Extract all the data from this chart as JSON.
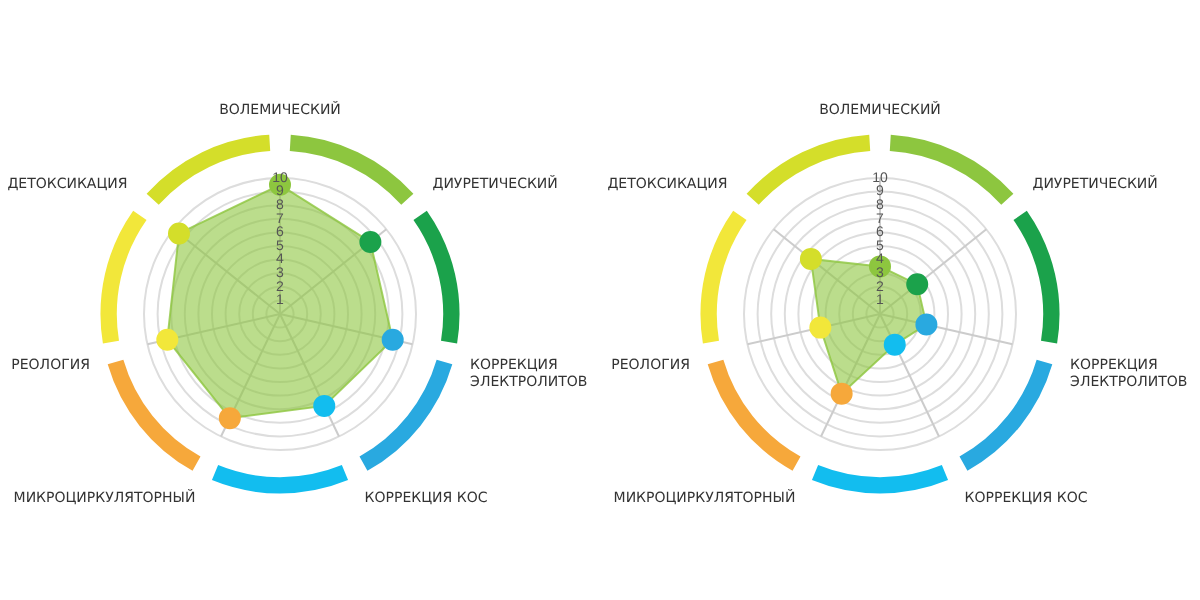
{
  "chart_data": [
    {
      "type": "radar",
      "categories": [
        "ВОЛЕМИЧЕСКИЙ",
        "ДИУРЕТИЧЕСКИЙ",
        "КОРРЕКЦИЯ ЭЛЕКТРОЛИТОВ",
        "КОРРЕКЦИЯ КОС",
        "МИКРОЦИРКУЛЯТОРНЫЙ",
        "РЕОЛОГИЯ",
        "ДЕТОКСИКАЦИЯ"
      ],
      "ylim": [
        0,
        10
      ],
      "yticks": [
        1,
        2,
        3,
        4,
        5,
        6,
        7,
        8,
        9,
        10
      ],
      "grid": true,
      "legend": false,
      "marker": "circle",
      "series": [
        {
          "color": "#8dc63f",
          "colors": [
            "#8dc63f",
            "#1ba24b",
            "#29a9e0",
            "#12bdef",
            "#f6a83b",
            "#f2e73a",
            "#d4de2a"
          ],
          "values": [
            9.5,
            8.5,
            8.5,
            7.5,
            8.5,
            8.5,
            9.5
          ]
        }
      ]
    },
    {
      "type": "radar",
      "categories": [
        "ВОЛЕМИЧЕСКИЙ",
        "ДИУРЕТИЧЕСКИЙ",
        "КОРРЕКЦИЯ ЭЛЕКТРОЛИТОВ",
        "КОРРЕКЦИЯ КОС",
        "МИКРОЦИРКУЛЯТОРНЫЙ",
        "РЕОЛОГИЯ",
        "ДЕТОКСИКАЦИЯ"
      ],
      "ylim": [
        0,
        10
      ],
      "yticks": [
        1,
        2,
        3,
        4,
        5,
        6,
        7,
        8,
        9,
        10
      ],
      "grid": true,
      "legend": false,
      "marker": "circle",
      "series": [
        {
          "color": "#8dc63f",
          "colors": [
            "#8dc63f",
            "#1ba24b",
            "#29a9e0",
            "#12bdef",
            "#f6a83b",
            "#f2e73a",
            "#d4de2a"
          ],
          "values": [
            3.5,
            3.5,
            3.5,
            2.5,
            6.5,
            4.5,
            6.5
          ]
        }
      ]
    }
  ]
}
